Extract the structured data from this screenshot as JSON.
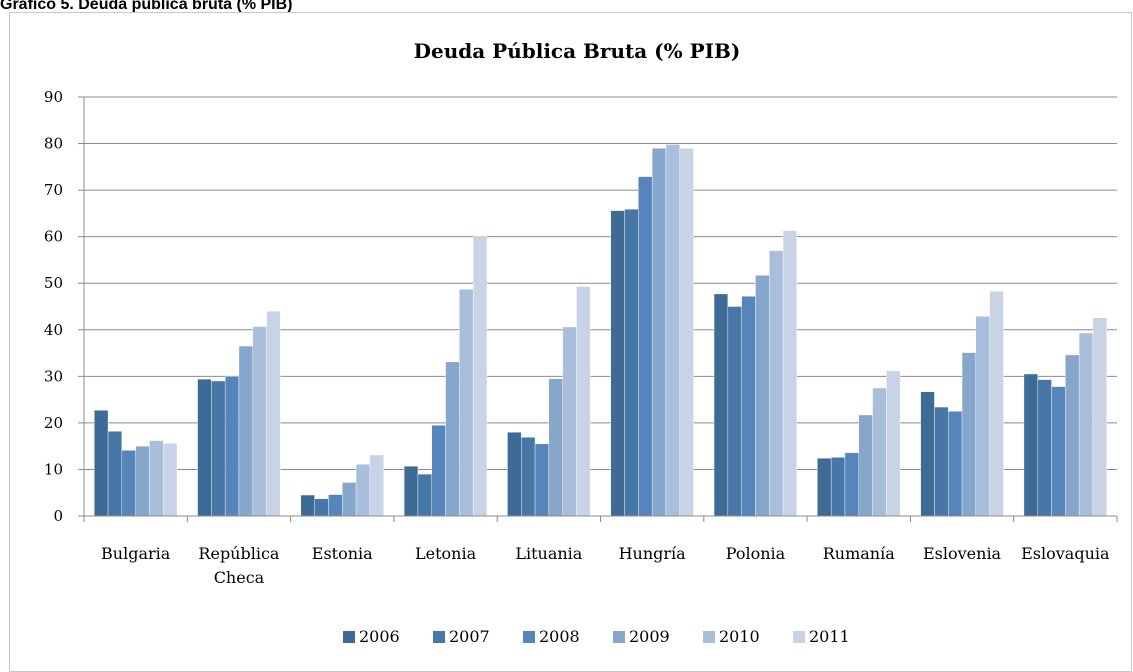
{
  "caption": "Gráfico 5. Deuda pública bruta (% PIB)",
  "chart_data": {
    "type": "bar",
    "title": "Deuda Pública Bruta (% PIB)",
    "xlabel": "",
    "ylabel": "",
    "ylim": [
      0,
      90
    ],
    "yticks": [
      "0",
      "10",
      "20",
      "30",
      "40",
      "50",
      "60",
      "70",
      "80",
      "90"
    ],
    "grid": true,
    "legend_position": "bottom",
    "categories": [
      "Bulgaria",
      "República Checa",
      "Estonia",
      "Letonia",
      "Lituania",
      "Hungría",
      "Polonia",
      "Rumanía",
      "Eslovenia",
      "Eslovaquia"
    ],
    "category_lines": [
      [
        "Bulgaria"
      ],
      [
        "República",
        "Checa"
      ],
      [
        "Estonia"
      ],
      [
        "Letonia"
      ],
      [
        "Lituania"
      ],
      [
        "Hungría"
      ],
      [
        "Polonia"
      ],
      [
        "Rumanía"
      ],
      [
        "Eslovenia"
      ],
      [
        "Eslovaquia"
      ]
    ],
    "series": [
      {
        "name": "2006",
        "color": "#3e6a96",
        "values": [
          22.7,
          29.4,
          4.5,
          10.7,
          18.0,
          65.6,
          47.7,
          12.4,
          26.7,
          30.5
        ]
      },
      {
        "name": "2007",
        "color": "#4777a7",
        "values": [
          18.2,
          29.0,
          3.7,
          9.0,
          16.9,
          65.9,
          45.0,
          12.6,
          23.4,
          29.3
        ]
      },
      {
        "name": "2008",
        "color": "#5585bb",
        "values": [
          14.1,
          30.0,
          4.6,
          19.5,
          15.5,
          72.9,
          47.2,
          13.6,
          22.5,
          27.8
        ]
      },
      {
        "name": "2009",
        "color": "#87a6cc",
        "values": [
          15.0,
          36.5,
          7.2,
          33.1,
          29.5,
          79.0,
          51.7,
          21.7,
          35.1,
          34.6
        ]
      },
      {
        "name": "2010",
        "color": "#a9bedb",
        "values": [
          16.2,
          40.7,
          11.1,
          48.7,
          40.6,
          79.8,
          57.0,
          27.5,
          42.9,
          39.3
        ]
      },
      {
        "name": "2011",
        "color": "#c8d3e6",
        "values": [
          15.6,
          44.0,
          13.1,
          60.2,
          49.3,
          79.0,
          61.3,
          31.2,
          48.3,
          42.6
        ]
      }
    ]
  }
}
